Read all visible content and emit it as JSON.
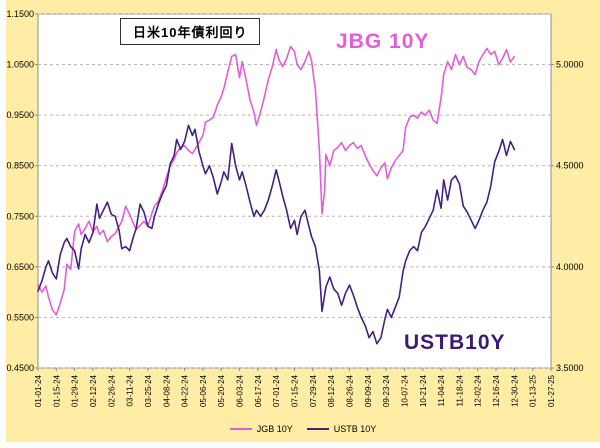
{
  "colors": {
    "background": "#ffeda6",
    "plot_bg": "#ffffff",
    "grid": "#b5b5b5",
    "axis": "#8c8c8c",
    "jgb_line": "#e35ed6",
    "ustb_line": "#45217f",
    "text": "#000000"
  },
  "chart_data": {
    "type": "line",
    "title": "日米10年債利回り",
    "annotations": [
      {
        "id": "jgb",
        "text": "JBG 10Y",
        "color": "#e35ed6"
      },
      {
        "id": "ustb",
        "text": "USTB10Y",
        "color": "#3c1a78"
      }
    ],
    "left_axis": {
      "min": 0.45,
      "max": 1.15,
      "step": 0.1,
      "decimals": 4,
      "tick_labels": [
        "1.1500",
        "1.0500",
        "0.9500",
        "0.8500",
        "0.7500",
        "0.6500",
        "0.5500",
        "0.4500"
      ]
    },
    "right_axis": {
      "min": 3.5,
      "max": 5.25,
      "decimals": 4,
      "tick_values": [
        5.0,
        4.5,
        4.0,
        3.5
      ],
      "tick_labels": [
        "5.0000",
        "4.5000",
        "4.0000",
        "3.5000"
      ]
    },
    "x_axis": {
      "domain": [
        0,
        392
      ],
      "days_per_tick": 14,
      "tick_labels": [
        "01-01-24",
        "01-15-24",
        "01-29-24",
        "02-12-24",
        "02-26-24",
        "03-11-24",
        "03-25-24",
        "04-08-24",
        "04-22-24",
        "05-06-24",
        "05-20-24",
        "06-03-24",
        "06-17-24",
        "07-01-24",
        "07-15-24",
        "07-29-24",
        "08-12-24",
        "08-26-24",
        "09-09-24",
        "09-23-24",
        "10-07-24",
        "10-21-24",
        "11-04-24",
        "11-18-24",
        "12-02-24",
        "12-16-24",
        "12-30-24",
        "01-13-25",
        "01-27-25"
      ]
    },
    "grid": "horizontal-dashed",
    "legend_position": "bottom-center",
    "series": [
      {
        "name": "JGB 10Y",
        "axis": "left",
        "color": "#e35ed6",
        "points": [
          [
            0,
            0.615
          ],
          [
            3,
            0.6
          ],
          [
            6,
            0.612
          ],
          [
            8,
            0.59
          ],
          [
            11,
            0.565
          ],
          [
            14,
            0.555
          ],
          [
            17,
            0.578
          ],
          [
            20,
            0.605
          ],
          [
            22,
            0.655
          ],
          [
            25,
            0.645
          ],
          [
            28,
            0.72
          ],
          [
            31,
            0.735
          ],
          [
            33,
            0.714
          ],
          [
            36,
            0.726
          ],
          [
            39,
            0.74
          ],
          [
            42,
            0.72
          ],
          [
            45,
            0.73
          ],
          [
            47,
            0.714
          ],
          [
            50,
            0.722
          ],
          [
            53,
            0.7
          ],
          [
            56,
            0.71
          ],
          [
            59,
            0.716
          ],
          [
            62,
            0.73
          ],
          [
            64,
            0.74
          ],
          [
            67,
            0.77
          ],
          [
            70,
            0.754
          ],
          [
            73,
            0.735
          ],
          [
            75,
            0.724
          ],
          [
            78,
            0.732
          ],
          [
            81,
            0.74
          ],
          [
            84,
            0.73
          ],
          [
            87,
            0.756
          ],
          [
            89,
            0.77
          ],
          [
            92,
            0.78
          ],
          [
            95,
            0.8
          ],
          [
            98,
            0.826
          ],
          [
            101,
            0.85
          ],
          [
            104,
            0.862
          ],
          [
            106,
            0.876
          ],
          [
            109,
            0.886
          ],
          [
            112,
            0.89
          ],
          [
            115,
            0.88
          ],
          [
            118,
            0.874
          ],
          [
            120,
            0.882
          ],
          [
            123,
            0.896
          ],
          [
            126,
            0.91
          ],
          [
            128,
            0.936
          ],
          [
            131,
            0.94
          ],
          [
            134,
            0.946
          ],
          [
            137,
            0.97
          ],
          [
            140,
            0.986
          ],
          [
            142,
            1.002
          ],
          [
            145,
            1.036
          ],
          [
            148,
            1.066
          ],
          [
            151,
            1.07
          ],
          [
            154,
            1.024
          ],
          [
            156,
            1.056
          ],
          [
            159,
            1.02
          ],
          [
            162,
            0.98
          ],
          [
            165,
            0.956
          ],
          [
            167,
            0.93
          ],
          [
            170,
            0.956
          ],
          [
            173,
            0.986
          ],
          [
            176,
            1.02
          ],
          [
            179,
            1.046
          ],
          [
            182,
            1.08
          ],
          [
            184,
            1.06
          ],
          [
            187,
            1.046
          ],
          [
            190,
            1.062
          ],
          [
            193,
            1.086
          ],
          [
            196,
            1.076
          ],
          [
            198,
            1.05
          ],
          [
            201,
            1.04
          ],
          [
            204,
            1.056
          ],
          [
            207,
            1.076
          ],
          [
            209,
            1.058
          ],
          [
            212,
            1.0
          ],
          [
            215,
            0.88
          ],
          [
            217,
            0.755
          ],
          [
            219,
            0.8
          ],
          [
            220,
            0.872
          ],
          [
            223,
            0.85
          ],
          [
            226,
            0.88
          ],
          [
            229,
            0.886
          ],
          [
            232,
            0.896
          ],
          [
            235,
            0.88
          ],
          [
            238,
            0.89
          ],
          [
            241,
            0.896
          ],
          [
            244,
            0.884
          ],
          [
            247,
            0.89
          ],
          [
            250,
            0.87
          ],
          [
            253,
            0.854
          ],
          [
            256,
            0.84
          ],
          [
            259,
            0.83
          ],
          [
            262,
            0.846
          ],
          [
            265,
            0.856
          ],
          [
            267,
            0.824
          ],
          [
            270,
            0.846
          ],
          [
            273,
            0.86
          ],
          [
            276,
            0.87
          ],
          [
            279,
            0.88
          ],
          [
            281,
            0.926
          ],
          [
            284,
            0.946
          ],
          [
            287,
            0.95
          ],
          [
            290,
            0.944
          ],
          [
            293,
            0.956
          ],
          [
            296,
            0.95
          ],
          [
            299,
            0.96
          ],
          [
            302,
            0.94
          ],
          [
            305,
            0.934
          ],
          [
            308,
            0.985
          ],
          [
            310,
            1.03
          ],
          [
            313,
            1.056
          ],
          [
            316,
            1.04
          ],
          [
            319,
            1.07
          ],
          [
            322,
            1.05
          ],
          [
            325,
            1.066
          ],
          [
            328,
            1.044
          ],
          [
            331,
            1.04
          ],
          [
            334,
            1.03
          ],
          [
            337,
            1.056
          ],
          [
            340,
            1.07
          ],
          [
            343,
            1.082
          ],
          [
            346,
            1.07
          ],
          [
            349,
            1.076
          ],
          [
            352,
            1.05
          ],
          [
            355,
            1.062
          ],
          [
            358,
            1.08
          ],
          [
            361,
            1.055
          ],
          [
            364,
            1.066
          ]
        ]
      },
      {
        "name": "USTB 10Y",
        "axis": "right",
        "color": "#45217f",
        "points": [
          [
            0,
            3.88
          ],
          [
            3,
            3.93
          ],
          [
            6,
            4.0
          ],
          [
            8,
            4.03
          ],
          [
            11,
            3.97
          ],
          [
            14,
            3.94
          ],
          [
            17,
            4.06
          ],
          [
            20,
            4.12
          ],
          [
            22,
            4.14
          ],
          [
            25,
            4.1
          ],
          [
            28,
            4.08
          ],
          [
            31,
            3.99
          ],
          [
            33,
            4.09
          ],
          [
            36,
            4.16
          ],
          [
            39,
            4.12
          ],
          [
            42,
            4.17
          ],
          [
            45,
            4.31
          ],
          [
            47,
            4.24
          ],
          [
            50,
            4.28
          ],
          [
            53,
            4.32
          ],
          [
            56,
            4.26
          ],
          [
            59,
            4.25
          ],
          [
            62,
            4.18
          ],
          [
            64,
            4.09
          ],
          [
            67,
            4.1
          ],
          [
            70,
            4.08
          ],
          [
            73,
            4.15
          ],
          [
            75,
            4.19
          ],
          [
            78,
            4.31
          ],
          [
            81,
            4.27
          ],
          [
            84,
            4.2
          ],
          [
            87,
            4.19
          ],
          [
            89,
            4.25
          ],
          [
            92,
            4.31
          ],
          [
            95,
            4.36
          ],
          [
            98,
            4.4
          ],
          [
            101,
            4.51
          ],
          [
            104,
            4.55
          ],
          [
            106,
            4.63
          ],
          [
            109,
            4.58
          ],
          [
            112,
            4.62
          ],
          [
            115,
            4.7
          ],
          [
            118,
            4.65
          ],
          [
            120,
            4.68
          ],
          [
            123,
            4.57
          ],
          [
            126,
            4.5
          ],
          [
            128,
            4.46
          ],
          [
            131,
            4.5
          ],
          [
            134,
            4.44
          ],
          [
            137,
            4.36
          ],
          [
            140,
            4.42
          ],
          [
            142,
            4.47
          ],
          [
            145,
            4.43
          ],
          [
            148,
            4.61
          ],
          [
            151,
            4.5
          ],
          [
            154,
            4.43
          ],
          [
            156,
            4.47
          ],
          [
            159,
            4.4
          ],
          [
            162,
            4.32
          ],
          [
            165,
            4.25
          ],
          [
            167,
            4.28
          ],
          [
            170,
            4.25
          ],
          [
            173,
            4.28
          ],
          [
            176,
            4.33
          ],
          [
            179,
            4.4
          ],
          [
            182,
            4.48
          ],
          [
            184,
            4.43
          ],
          [
            187,
            4.35
          ],
          [
            190,
            4.28
          ],
          [
            193,
            4.19
          ],
          [
            196,
            4.23
          ],
          [
            198,
            4.16
          ],
          [
            201,
            4.25
          ],
          [
            204,
            4.28
          ],
          [
            207,
            4.2
          ],
          [
            209,
            4.15
          ],
          [
            212,
            4.1
          ],
          [
            215,
            3.98
          ],
          [
            217,
            3.78
          ],
          [
            220,
            3.9
          ],
          [
            223,
            3.95
          ],
          [
            226,
            3.89
          ],
          [
            229,
            3.87
          ],
          [
            232,
            3.81
          ],
          [
            235,
            3.87
          ],
          [
            238,
            3.91
          ],
          [
            241,
            3.86
          ],
          [
            244,
            3.8
          ],
          [
            247,
            3.75
          ],
          [
            250,
            3.71
          ],
          [
            253,
            3.65
          ],
          [
            256,
            3.68
          ],
          [
            259,
            3.62
          ],
          [
            262,
            3.65
          ],
          [
            265,
            3.74
          ],
          [
            267,
            3.79
          ],
          [
            270,
            3.75
          ],
          [
            273,
            3.8
          ],
          [
            276,
            3.85
          ],
          [
            279,
            3.98
          ],
          [
            281,
            4.03
          ],
          [
            284,
            4.08
          ],
          [
            287,
            4.1
          ],
          [
            290,
            4.08
          ],
          [
            293,
            4.17
          ],
          [
            296,
            4.2
          ],
          [
            299,
            4.24
          ],
          [
            302,
            4.28
          ],
          [
            305,
            4.38
          ],
          [
            308,
            4.29
          ],
          [
            310,
            4.43
          ],
          [
            313,
            4.33
          ],
          [
            316,
            4.43
          ],
          [
            319,
            4.45
          ],
          [
            322,
            4.41
          ],
          [
            325,
            4.3
          ],
          [
            328,
            4.27
          ],
          [
            331,
            4.23
          ],
          [
            334,
            4.19
          ],
          [
            337,
            4.23
          ],
          [
            340,
            4.28
          ],
          [
            343,
            4.32
          ],
          [
            346,
            4.4
          ],
          [
            349,
            4.52
          ],
          [
            352,
            4.57
          ],
          [
            355,
            4.63
          ],
          [
            358,
            4.55
          ],
          [
            361,
            4.62
          ],
          [
            364,
            4.58
          ]
        ]
      }
    ]
  },
  "legend": {
    "items": [
      {
        "label": "JGB 10Y",
        "color": "#e35ed6"
      },
      {
        "label": "USTB 10Y",
        "color": "#45217f"
      }
    ]
  }
}
